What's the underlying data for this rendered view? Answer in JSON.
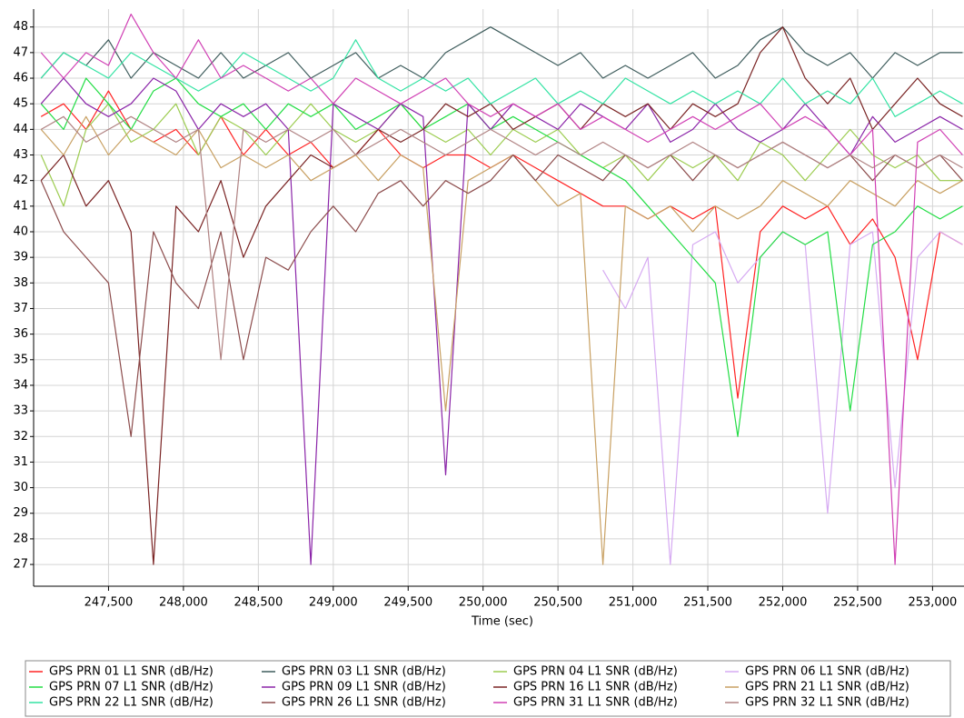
{
  "chart_data": {
    "type": "line",
    "x_label": "Time (sec)",
    "x": [
      247050,
      247200,
      247350,
      247500,
      247650,
      247800,
      247950,
      248100,
      248250,
      248400,
      248550,
      248700,
      248850,
      249000,
      249150,
      249300,
      249450,
      249600,
      249750,
      249900,
      250050,
      250200,
      250350,
      250500,
      250650,
      250800,
      250950,
      251100,
      251250,
      251400,
      251550,
      251700,
      251850,
      252000,
      252150,
      252300,
      252450,
      252600,
      252750,
      252900,
      253050,
      253200
    ],
    "xlim": [
      247000,
      253210
    ],
    "ylim": [
      26.15,
      48.7
    ],
    "xticks": [
      {
        "value": 247500,
        "label": "247,500"
      },
      {
        "value": 248000,
        "label": "248,000"
      },
      {
        "value": 248500,
        "label": "248,500"
      },
      {
        "value": 249000,
        "label": "249,000"
      },
      {
        "value": 249500,
        "label": "249,500"
      },
      {
        "value": 250000,
        "label": "250,000"
      },
      {
        "value": 250500,
        "label": "250,500"
      },
      {
        "value": 251000,
        "label": "251,000"
      },
      {
        "value": 251500,
        "label": "251,500"
      },
      {
        "value": 252000,
        "label": "252,000"
      },
      {
        "value": 252500,
        "label": "252,500"
      },
      {
        "value": 253000,
        "label": "253,000"
      }
    ],
    "yticks": [
      27,
      28,
      29,
      30,
      31,
      32,
      33,
      34,
      35,
      36,
      37,
      38,
      39,
      40,
      41,
      42,
      43,
      44,
      45,
      46,
      47,
      48
    ],
    "grid": true,
    "legend": "bottom",
    "series": [
      {
        "name": "GPS PRN 01 L1 SNR (dB/Hz)",
        "color": "#ff2222",
        "values": [
          44.5,
          45,
          44,
          45.5,
          44,
          43.5,
          44,
          43,
          44.5,
          43,
          44,
          43,
          43.5,
          42.5,
          43,
          44,
          43,
          42.5,
          43,
          43,
          42.5,
          43,
          42.5,
          42,
          41.5,
          41,
          41,
          40.5,
          41,
          40.5,
          41,
          33.5,
          40,
          41,
          40.5,
          41,
          39.5,
          40.5,
          39,
          35,
          40,
          39.5
        ]
      },
      {
        "name": "GPS PRN 03 L1 SNR (dB/Hz)",
        "color": "#3e5c5c",
        "values": [
          46,
          47,
          46.5,
          47.5,
          46,
          47,
          46.5,
          46,
          47,
          46,
          46.5,
          47,
          46,
          46.5,
          47,
          46,
          46.5,
          46,
          47,
          47.5,
          48,
          47.5,
          47,
          46.5,
          47,
          46,
          46.5,
          46,
          46.5,
          47,
          46,
          46.5,
          47.5,
          48,
          47,
          46.5,
          47,
          46,
          47,
          46.5,
          47,
          47
        ]
      },
      {
        "name": "GPS PRN 04 L1 SNR (dB/Hz)",
        "color": "#9ccc50",
        "values": [
          43,
          41,
          44,
          45,
          43.5,
          44,
          45,
          43,
          44.5,
          44,
          43,
          44,
          45,
          44,
          43.5,
          44,
          45,
          44,
          43.5,
          44,
          43,
          44,
          43.5,
          44,
          43,
          42.5,
          43,
          42,
          43,
          42.5,
          43,
          42,
          43.5,
          43,
          42,
          43,
          44,
          43,
          42.5,
          43,
          42,
          42
        ]
      },
      {
        "name": "GPS PRN 06 L1 SNR (dB/Hz)",
        "color": "#d6aaf2",
        "values": [
          null,
          null,
          null,
          null,
          null,
          null,
          null,
          null,
          null,
          null,
          null,
          null,
          null,
          null,
          null,
          null,
          null,
          null,
          null,
          null,
          null,
          null,
          null,
          null,
          null,
          38.5,
          37,
          39,
          27,
          39.5,
          40,
          38,
          39,
          40,
          39.5,
          29,
          39.5,
          40,
          30,
          39,
          40,
          39.5
        ]
      },
      {
        "name": "GPS PRN 07 L1 SNR (dB/Hz)",
        "color": "#22dd44",
        "values": [
          45,
          44,
          46,
          45,
          44,
          45.5,
          46,
          45,
          44.5,
          45,
          44,
          45,
          44.5,
          45,
          44,
          44.5,
          45,
          44,
          44.5,
          45,
          44,
          44.5,
          44,
          43.5,
          43,
          42.5,
          42,
          41,
          40,
          39,
          38,
          32,
          39,
          40,
          39.5,
          40,
          33,
          39.5,
          40,
          41,
          40.5,
          41
        ]
      },
      {
        "name": "GPS PRN 09 L1 SNR (dB/Hz)",
        "color": "#8a24a8",
        "values": [
          45,
          46,
          45,
          44.5,
          45,
          46,
          45.5,
          44,
          45,
          44.5,
          45,
          44,
          27,
          45,
          44.5,
          44,
          45,
          44.5,
          30.5,
          45,
          44,
          45,
          44.5,
          44,
          45,
          44.5,
          44,
          45,
          43.5,
          44,
          45,
          44,
          43.5,
          44,
          45,
          44,
          43,
          44.5,
          43.5,
          44,
          44.5,
          44
        ]
      },
      {
        "name": "GPS PRN 16 L1 SNR (dB/Hz)",
        "color": "#7a2424",
        "values": [
          42,
          43,
          41,
          42,
          40,
          27,
          41,
          40,
          42,
          39,
          41,
          42,
          43,
          42.5,
          43,
          44,
          43.5,
          44,
          45,
          44.5,
          45,
          44,
          44.5,
          45,
          44,
          45,
          44.5,
          45,
          44,
          45,
          44.5,
          45,
          47,
          48,
          46,
          45,
          46,
          44,
          45,
          46,
          45,
          44.5
        ]
      },
      {
        "name": "GPS PRN 21 L1 SNR (dB/Hz)",
        "color": "#c8a062",
        "values": [
          44,
          43,
          44.5,
          43,
          44,
          43.5,
          43,
          44,
          42.5,
          43,
          42.5,
          43,
          42,
          42.5,
          43,
          42,
          43,
          42.5,
          33,
          42,
          42.5,
          43,
          42,
          41,
          41.5,
          27,
          41,
          40.5,
          41,
          40,
          41,
          40.5,
          41,
          42,
          41.5,
          41,
          42,
          41.5,
          41,
          42,
          41.5,
          42
        ]
      },
      {
        "name": "GPS PRN 22 L1 SNR (dB/Hz)",
        "color": "#33e3a3",
        "values": [
          46,
          47,
          46.5,
          46,
          47,
          46.5,
          46,
          45.5,
          46,
          47,
          46.5,
          46,
          45.5,
          46,
          47.5,
          46,
          45.5,
          46,
          45.5,
          46,
          45,
          45.5,
          46,
          45,
          45.5,
          45,
          46,
          45.5,
          45,
          45.5,
          45,
          45.5,
          45,
          46,
          45,
          45.5,
          45,
          46,
          44.5,
          45,
          45.5,
          45
        ]
      },
      {
        "name": "GPS PRN 26 L1 SNR (dB/Hz)",
        "color": "#8c4c4c",
        "values": [
          42,
          40,
          39,
          38,
          32,
          40,
          38,
          37,
          40,
          35,
          39,
          38.5,
          40,
          41,
          40,
          41.5,
          42,
          41,
          42,
          41.5,
          42,
          43,
          42,
          43,
          42.5,
          42,
          43,
          42.5,
          43,
          42,
          43,
          42.5,
          43,
          43.5,
          43,
          42.5,
          43,
          42,
          43,
          42.5,
          43,
          42
        ]
      },
      {
        "name": "GPS PRN 31 L1 SNR (dB/Hz)",
        "color": "#d040b4",
        "values": [
          47,
          46,
          47,
          46.5,
          48.5,
          47,
          46,
          47.5,
          46,
          46.5,
          46,
          45.5,
          46,
          45,
          46,
          45.5,
          45,
          45.5,
          46,
          45,
          44.5,
          45,
          44.5,
          45,
          44,
          44.5,
          44,
          43.5,
          44,
          44.5,
          44,
          44.5,
          45,
          44,
          44.5,
          44,
          43,
          44,
          27,
          43.5,
          44,
          43
        ]
      },
      {
        "name": "GPS PRN 32 L1 SNR (dB/Hz)",
        "color": "#b08282",
        "values": [
          44,
          44.5,
          43.5,
          44,
          44.5,
          44,
          43.5,
          44,
          35,
          44,
          43.5,
          44,
          43.5,
          44,
          43,
          43.5,
          44,
          43.5,
          43,
          43.5,
          44,
          43.5,
          43,
          43.5,
          43,
          43.5,
          43,
          42.5,
          43,
          43.5,
          43,
          42.5,
          43,
          43.5,
          43,
          42.5,
          43,
          42.5,
          43,
          42.5,
          43,
          42.5
        ]
      }
    ]
  }
}
